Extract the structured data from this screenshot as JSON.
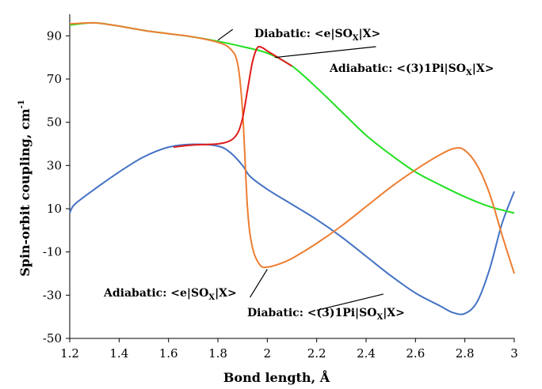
{
  "chart_data": {
    "type": "line",
    "title": "",
    "xlabel": "Bond length, Å",
    "ylabel": "Spin-orbit coupling, cm",
    "ylabel_sup": "-1",
    "xlim": [
      1.2,
      3.0
    ],
    "ylim": [
      -50,
      100
    ],
    "x_ticks": [
      "1.2",
      "1.4",
      "1.6",
      "1.8",
      "2",
      "2.2",
      "2.4",
      "2.6",
      "2.8",
      "3"
    ],
    "y_ticks": [
      "-50",
      "-30",
      "-10",
      "10",
      "30",
      "50",
      "70",
      "90"
    ],
    "grid": false,
    "legend": "none",
    "series": [
      {
        "id": "diabatic_pi",
        "color": "#4472c4",
        "points": [
          [
            1.2,
            8
          ],
          [
            1.22,
            12
          ],
          [
            1.3,
            19
          ],
          [
            1.4,
            27
          ],
          [
            1.5,
            34
          ],
          [
            1.6,
            38.5
          ],
          [
            1.7,
            39.8
          ],
          [
            1.8,
            39
          ],
          [
            1.85,
            36
          ],
          [
            1.9,
            30
          ],
          [
            1.93,
            25
          ],
          [
            2.0,
            19
          ],
          [
            2.1,
            12
          ],
          [
            2.2,
            5
          ],
          [
            2.3,
            -3
          ],
          [
            2.4,
            -12
          ],
          [
            2.5,
            -21
          ],
          [
            2.6,
            -29
          ],
          [
            2.7,
            -35
          ],
          [
            2.75,
            -38
          ],
          [
            2.8,
            -38.5
          ],
          [
            2.85,
            -33
          ],
          [
            2.9,
            -18
          ],
          [
            2.95,
            3
          ],
          [
            3.0,
            18
          ]
        ]
      },
      {
        "id": "diabatic_e",
        "color": "#22e022",
        "points": [
          [
            1.2,
            95
          ],
          [
            1.3,
            96
          ],
          [
            1.4,
            94.5
          ],
          [
            1.5,
            92.5
          ],
          [
            1.6,
            91
          ],
          [
            1.7,
            89.5
          ],
          [
            1.8,
            87.5
          ],
          [
            1.9,
            85
          ],
          [
            2.0,
            82
          ],
          [
            2.1,
            76
          ],
          [
            2.2,
            66
          ],
          [
            2.3,
            55
          ],
          [
            2.4,
            44
          ],
          [
            2.5,
            35
          ],
          [
            2.6,
            27
          ],
          [
            2.7,
            21
          ],
          [
            2.8,
            15.5
          ],
          [
            2.9,
            11
          ],
          [
            3.0,
            8
          ]
        ]
      },
      {
        "id": "adiabatic_e",
        "color": "#ed7d31",
        "points": [
          [
            1.2,
            95.5
          ],
          [
            1.3,
            96
          ],
          [
            1.4,
            94.5
          ],
          [
            1.5,
            92.5
          ],
          [
            1.6,
            91
          ],
          [
            1.7,
            89.5
          ],
          [
            1.8,
            87
          ],
          [
            1.85,
            84
          ],
          [
            1.88,
            77
          ],
          [
            1.9,
            55
          ],
          [
            1.92,
            10
          ],
          [
            1.94,
            -8
          ],
          [
            1.97,
            -16
          ],
          [
            2.0,
            -17
          ],
          [
            2.05,
            -15.5
          ],
          [
            2.1,
            -13
          ],
          [
            2.2,
            -6
          ],
          [
            2.3,
            2
          ],
          [
            2.4,
            11
          ],
          [
            2.5,
            20
          ],
          [
            2.6,
            28
          ],
          [
            2.7,
            35
          ],
          [
            2.76,
            38
          ],
          [
            2.8,
            37
          ],
          [
            2.85,
            30
          ],
          [
            2.9,
            17
          ],
          [
            2.95,
            -2
          ],
          [
            3.0,
            -20
          ]
        ]
      },
      {
        "id": "adiabatic_pi",
        "color": "#e01b1b",
        "points": [
          [
            1.62,
            38.5
          ],
          [
            1.7,
            39.5
          ],
          [
            1.8,
            40
          ],
          [
            1.85,
            41.5
          ],
          [
            1.88,
            45
          ],
          [
            1.9,
            52
          ],
          [
            1.92,
            65
          ],
          [
            1.94,
            78
          ],
          [
            1.96,
            84.5
          ],
          [
            1.98,
            84.5
          ],
          [
            2.0,
            83
          ],
          [
            2.05,
            79.5
          ],
          [
            2.1,
            76
          ]
        ]
      }
    ],
    "annotations": [
      {
        "prefix": "Diabatic: <e|SO",
        "sub": "X",
        "suffix": "|X>"
      },
      {
        "prefix": "Adiabatic: <(3)1Pi|SO",
        "sub": "X",
        "suffix": "|X>"
      },
      {
        "prefix": "Adiabatic: <e|SO",
        "sub": "X",
        "suffix": "|X>"
      },
      {
        "prefix": "Diabatic: <(3)1Pi|SO",
        "sub": "X",
        "suffix": "|X>"
      }
    ]
  }
}
